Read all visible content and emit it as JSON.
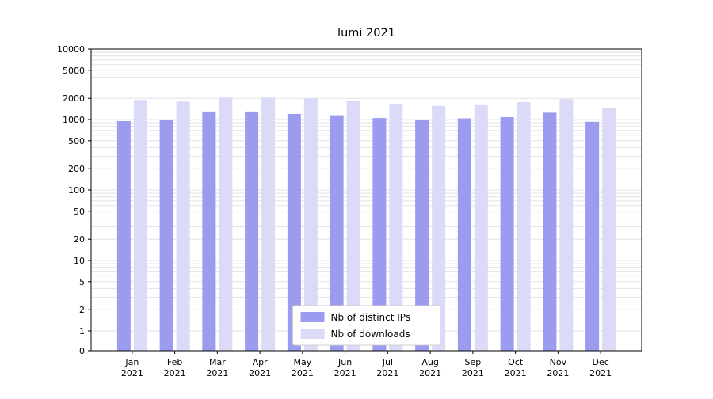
{
  "chart_data": {
    "type": "bar",
    "title": "lumi 2021",
    "yscale": "symlog",
    "ylim": [
      0,
      10000
    ],
    "grid": true,
    "legend_position": "lower center",
    "xtick_line2": "2021",
    "categories": [
      "Jan",
      "Feb",
      "Mar",
      "Apr",
      "May",
      "Jun",
      "Jul",
      "Aug",
      "Sep",
      "Oct",
      "Nov",
      "Dec"
    ],
    "yticks": [
      0,
      1,
      2,
      5,
      10,
      20,
      50,
      100,
      200,
      500,
      1000,
      2000,
      5000,
      10000
    ],
    "series": [
      {
        "name": "Nb of distinct IPs",
        "color": "#9b9bef",
        "values": [
          950,
          1000,
          1300,
          1300,
          1200,
          1150,
          1050,
          980,
          1040,
          1080,
          1250,
          930
        ]
      },
      {
        "name": "Nb of downloads",
        "color": "#dbdbf8",
        "values": [
          1900,
          1800,
          2050,
          2050,
          2000,
          1820,
          1680,
          1560,
          1640,
          1770,
          1950,
          1450
        ]
      }
    ],
    "colors": {
      "grid": "#e3e3e3",
      "axis": "#000000",
      "legend_border": "#cccccc"
    }
  }
}
